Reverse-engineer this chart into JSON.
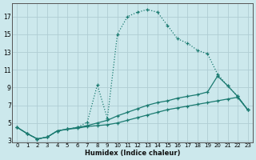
{
  "xlabel": "Humidex (Indice chaleur)",
  "bg_color": "#cce8ec",
  "grid_color": "#b0cdd4",
  "line_color": "#1a7a70",
  "xlim": [
    -0.5,
    23.5
  ],
  "ylim": [
    2.8,
    18.5
  ],
  "xticks": [
    0,
    1,
    2,
    3,
    4,
    5,
    6,
    7,
    8,
    9,
    10,
    11,
    12,
    13,
    14,
    15,
    16,
    17,
    18,
    19,
    20,
    21,
    22,
    23
  ],
  "yticks": [
    3,
    5,
    7,
    9,
    11,
    13,
    15,
    17
  ],
  "series": [
    {
      "x": [
        0,
        1,
        2,
        3,
        4,
        5,
        6,
        7,
        8,
        9,
        10,
        11,
        12,
        13,
        14,
        15,
        16,
        17,
        18,
        19,
        20,
        21,
        22,
        23
      ],
      "y": [
        4.5,
        3.8,
        3.2,
        3.4,
        4.1,
        4.3,
        4.4,
        4.6,
        4.7,
        4.8,
        5.0,
        5.3,
        5.6,
        5.9,
        6.2,
        6.5,
        6.7,
        6.9,
        7.1,
        7.3,
        7.5,
        7.7,
        7.9,
        6.5
      ],
      "style": "solid"
    },
    {
      "x": [
        0,
        1,
        2,
        3,
        4,
        5,
        6,
        7,
        8,
        9,
        10,
        11,
        12,
        13,
        14,
        15,
        16,
        17,
        18,
        19,
        20,
        21,
        22,
        23
      ],
      "y": [
        4.5,
        3.8,
        3.2,
        3.4,
        4.1,
        4.3,
        4.5,
        4.7,
        5.0,
        5.3,
        5.8,
        6.2,
        6.6,
        7.0,
        7.3,
        7.5,
        7.8,
        8.0,
        8.2,
        8.5,
        10.3,
        9.2,
        8.0,
        6.5
      ],
      "style": "solid"
    },
    {
      "x": [
        0,
        1,
        2,
        3,
        4,
        5,
        6,
        7,
        8,
        9,
        10,
        11,
        12,
        13,
        14,
        15,
        16,
        17,
        18,
        19,
        20,
        21,
        22,
        23
      ],
      "y": [
        4.5,
        3.8,
        3.2,
        3.4,
        4.1,
        4.3,
        4.5,
        5.1,
        9.3,
        5.5,
        15.0,
        17.0,
        17.5,
        17.8,
        17.5,
        16.0,
        14.5,
        14.0,
        13.2,
        12.8,
        10.5,
        9.2,
        8.0,
        6.5
      ],
      "style": "dotted"
    }
  ]
}
